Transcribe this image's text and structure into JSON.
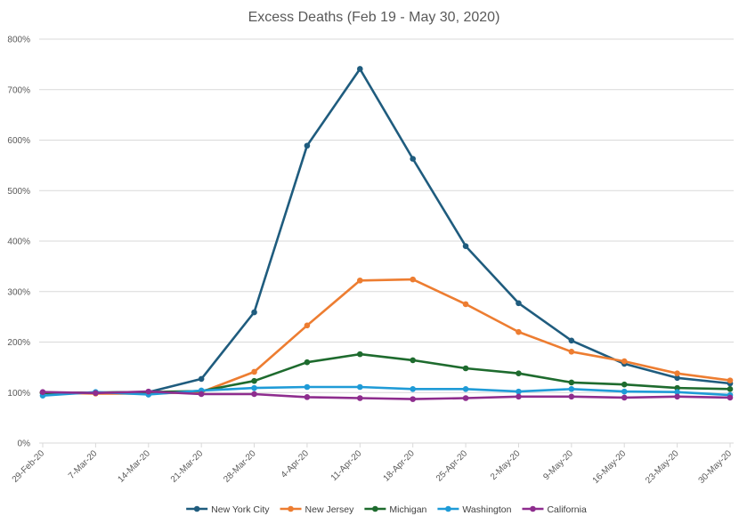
{
  "chart_data": {
    "type": "line",
    "title": "Excess Deaths (Feb 19 - May 30, 2020)",
    "xlabel": "",
    "ylabel": "",
    "categories": [
      "29-Feb-20",
      "7-Mar-20",
      "14-Mar-20",
      "21-Mar-20",
      "28-Mar-20",
      "4-Apr-20",
      "11-Apr-20",
      "18-Apr-20",
      "25-Apr-20",
      "2-May-20",
      "9-May-20",
      "16-May-20",
      "23-May-20",
      "30-May-20"
    ],
    "ylim": [
      0,
      800
    ],
    "yticks": [
      0,
      100,
      200,
      300,
      400,
      500,
      600,
      700,
      800
    ],
    "ytick_labels": [
      "0%",
      "100%",
      "200%",
      "300%",
      "400%",
      "500%",
      "600%",
      "700%",
      "800%"
    ],
    "grid": true,
    "legend_position": "bottom",
    "series": [
      {
        "name": "New York City",
        "color": "#1f5c7e",
        "values": [
          100,
          100,
          101,
          127,
          259,
          589,
          741,
          563,
          390,
          277,
          203,
          157,
          129,
          118
        ]
      },
      {
        "name": "New Jersey",
        "color": "#ed7d31",
        "values": [
          100,
          98,
          98,
          101,
          141,
          233,
          322,
          324,
          275,
          220,
          181,
          162,
          138,
          124
        ]
      },
      {
        "name": "Michigan",
        "color": "#1e6b2e",
        "values": [
          99,
          100,
          101,
          103,
          123,
          160,
          176,
          164,
          148,
          138,
          120,
          116,
          109,
          107
        ]
      },
      {
        "name": "Washington",
        "color": "#1f9bd7",
        "values": [
          94,
          101,
          96,
          104,
          109,
          111,
          111,
          107,
          107,
          102,
          107,
          102,
          101,
          95
        ]
      },
      {
        "name": "California",
        "color": "#8e2d8e",
        "values": [
          101,
          99,
          102,
          97,
          97,
          91,
          89,
          87,
          89,
          92,
          92,
          90,
          92,
          90
        ]
      }
    ]
  }
}
